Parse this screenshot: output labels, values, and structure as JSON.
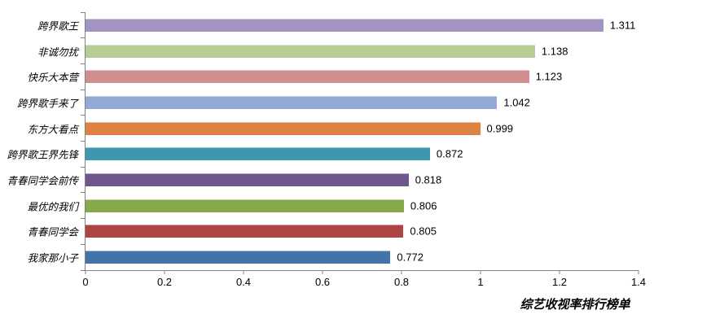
{
  "chart_data": {
    "type": "bar",
    "orientation": "horizontal",
    "title": "综艺收视率排行榜单",
    "categories": [
      "跨界歌王",
      "非诚勿扰",
      "快乐大本营",
      "跨界歌手来了",
      "东方大看点",
      "跨界歌王界先锋",
      "青春同学会前传",
      "最优的我们",
      "青春同学会",
      "我家那小子"
    ],
    "values": [
      1.311,
      1.138,
      1.123,
      1.042,
      0.999,
      0.872,
      0.818,
      0.806,
      0.805,
      0.772
    ],
    "value_labels": [
      "1.311",
      "1.138",
      "1.123",
      "1.042",
      "0.999",
      "0.872",
      "0.818",
      "0.806",
      "0.805",
      "0.772"
    ],
    "bar_colors": [
      "#a295c4",
      "#b7cc94",
      "#cf8f91",
      "#92a9d5",
      "#de8244",
      "#3f96af",
      "#6f568d",
      "#88a84c",
      "#ad4544",
      "#4473a9"
    ],
    "xlim": [
      0,
      1.4
    ],
    "x_ticks": [
      "0",
      "0.2",
      "0.4",
      "0.6",
      "0.8",
      "1",
      "1.2",
      "1.4"
    ],
    "xlabel": "",
    "ylabel": "",
    "grid": false,
    "legend": false,
    "axis_color": "#808080",
    "label_color": "#000000"
  }
}
